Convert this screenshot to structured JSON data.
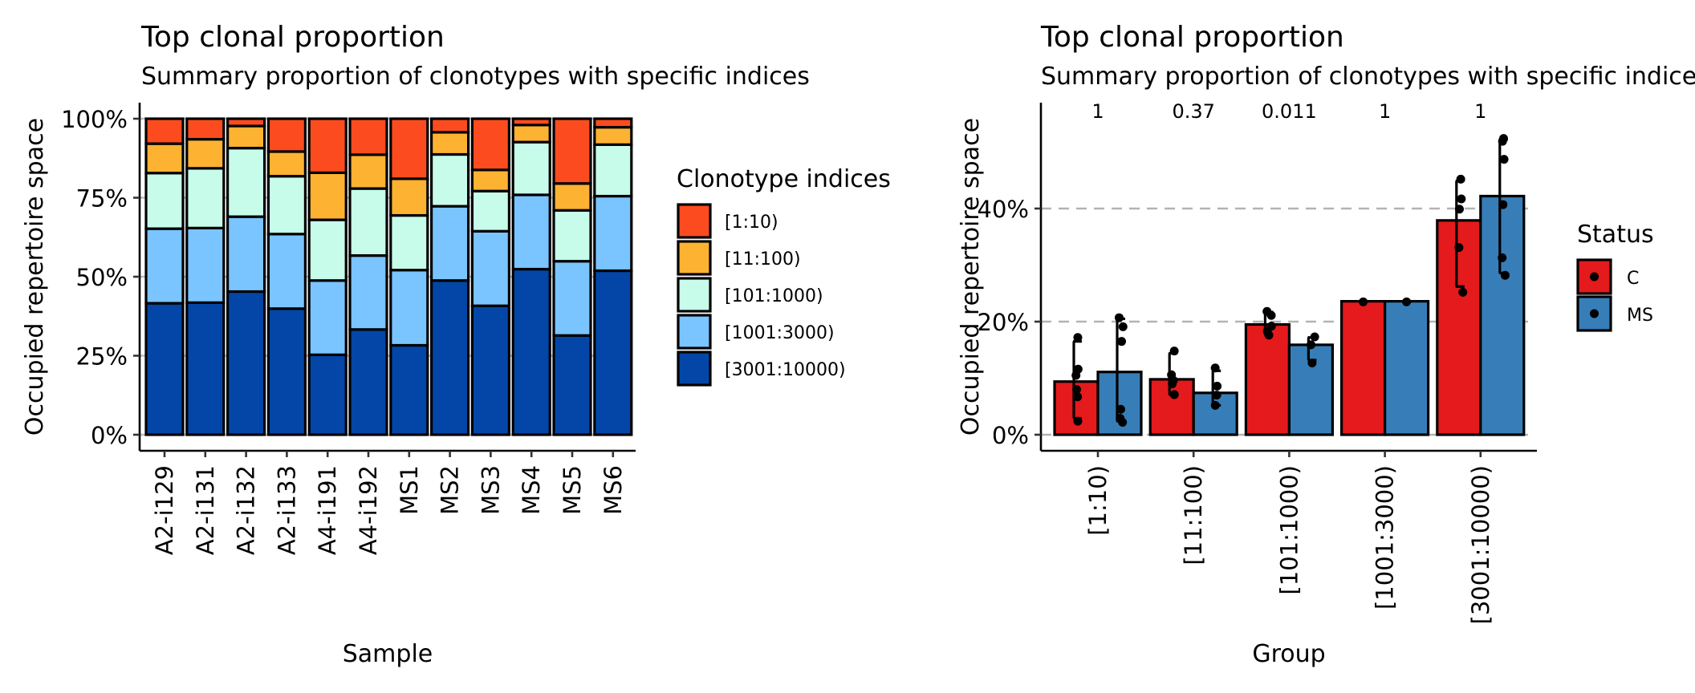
{
  "chart_data": [
    {
      "type": "bar",
      "stacked": true,
      "title": "Top clonal proportion",
      "subtitle": "Summary proportion of clonotypes with specific indices",
      "xlabel": "Sample",
      "ylabel": "Occupied repertoire space",
      "ylim": [
        0,
        1
      ],
      "yticks": [
        0,
        0.25,
        0.5,
        0.75,
        1.0
      ],
      "ytick_labels": [
        "0%",
        "25%",
        "50%",
        "75%",
        "100%"
      ],
      "grid": "horizontal major, light grey",
      "categories": [
        "A2-i129",
        "A2-i131",
        "A2-i132",
        "A2-i133",
        "A4-i191",
        "A4-i192",
        "MS1",
        "MS2",
        "MS3",
        "MS4",
        "MS5",
        "MS6"
      ],
      "legend": {
        "title": "Clonotype indices",
        "position": "right"
      },
      "series": [
        {
          "name": "[3001:10000)",
          "color": "#0346A7",
          "values": [
            0.416,
            0.418,
            0.453,
            0.399,
            0.253,
            0.333,
            0.283,
            0.488,
            0.408,
            0.524,
            0.314,
            0.519
          ]
        },
        {
          "name": "[1001:3000)",
          "color": "#7AC4FF",
          "values": [
            0.236,
            0.236,
            0.237,
            0.236,
            0.235,
            0.234,
            0.238,
            0.235,
            0.236,
            0.235,
            0.235,
            0.236
          ]
        },
        {
          "name": "[101:1000)",
          "color": "#C7FCEB",
          "values": [
            0.176,
            0.189,
            0.217,
            0.183,
            0.192,
            0.212,
            0.173,
            0.164,
            0.127,
            0.167,
            0.161,
            0.163
          ]
        },
        {
          "name": "[11:100)",
          "color": "#FDB232",
          "values": [
            0.093,
            0.092,
            0.07,
            0.078,
            0.149,
            0.107,
            0.116,
            0.07,
            0.067,
            0.054,
            0.085,
            0.055
          ]
        },
        {
          "name": "[1:10)",
          "color": "#FC4B1F",
          "values": [
            0.079,
            0.065,
            0.023,
            0.104,
            0.171,
            0.114,
            0.19,
            0.043,
            0.162,
            0.02,
            0.205,
            0.027
          ]
        }
      ],
      "legend_order": [
        "[1:10)",
        "[11:100)",
        "[101:1000)",
        "[1001:3000)",
        "[3001:10000)"
      ]
    },
    {
      "type": "bar",
      "grouped": true,
      "title": "Top clonal proportion",
      "subtitle": "Summary proportion of clonotypes with specific indices",
      "subtitle_visible": "Summary proportion of clonotypes with specific ind",
      "xlabel": "Group",
      "ylabel": "Occupied repertoire space",
      "ylim": [
        0,
        0.56
      ],
      "yticks": [
        0,
        0.2,
        0.4
      ],
      "ytick_labels": [
        "0%",
        "20%",
        "40%"
      ],
      "grid": "dashed at y-ticks",
      "categories": [
        "[1:10)",
        "[11:100)",
        "[101:1000)",
        "[1001:3000)",
        "[3001:10000)"
      ],
      "pvalues": [
        "1",
        "0.37",
        "0.011",
        "1",
        "1"
      ],
      "legend": {
        "title": "Status",
        "position": "right"
      },
      "series": [
        {
          "name": "C",
          "color": "#E41A1C",
          "values": [
            0.094,
            0.098,
            0.195,
            0.236,
            0.379
          ],
          "error_low": [
            0.029,
            0.071,
            0.177,
            null,
            0.262
          ],
          "error_high": [
            0.165,
            0.144,
            0.217,
            null,
            0.449
          ],
          "points": [
            [
              0.172,
              0.116,
              0.105,
              0.08,
              0.067,
              0.024
            ],
            [
              0.148,
              0.106,
              0.096,
              0.09,
              0.071
            ],
            [
              0.218,
              0.211,
              0.192,
              0.183,
              0.176
            ],
            [
              0.235
            ],
            [
              0.452,
              0.417,
              0.399,
              0.331,
              0.252
            ]
          ]
        },
        {
          "name": "MS",
          "color": "#377EB8",
          "values": [
            0.111,
            0.074,
            0.159,
            0.236,
            0.422
          ],
          "error_low": [
            0.024,
            0.052,
            0.132,
            null,
            0.286
          ],
          "error_high": [
            0.205,
            0.113,
            0.172,
            null,
            0.522
          ],
          "points": [
            [
              0.207,
              0.191,
              0.165,
              0.045,
              0.029,
              0.022
            ],
            [
              0.118,
              0.086,
              0.07,
              0.052
            ],
            [
              0.173,
              0.159,
              0.127
            ],
            [
              0.235
            ],
            [
              0.524,
              0.519,
              0.487,
              0.407,
              0.313,
              0.282
            ]
          ]
        }
      ]
    }
  ]
}
